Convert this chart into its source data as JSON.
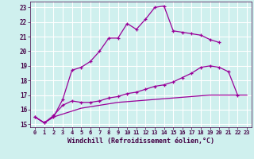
{
  "bg_color": "#cff0ee",
  "grid_color": "#ffffff",
  "line_color": "#990099",
  "xlabel": "Windchill (Refroidissement éolien,°C)",
  "xlim": [
    -0.5,
    23.5
  ],
  "ylim": [
    14.8,
    23.4
  ],
  "xticks": [
    0,
    1,
    2,
    3,
    4,
    5,
    6,
    7,
    8,
    9,
    10,
    11,
    12,
    13,
    14,
    15,
    16,
    17,
    18,
    19,
    20,
    21,
    22,
    23
  ],
  "yticks": [
    15,
    16,
    17,
    18,
    19,
    20,
    21,
    22,
    23
  ],
  "series1_x": [
    0,
    1,
    2,
    3,
    4,
    5,
    6,
    7,
    8,
    9,
    10,
    11,
    12,
    13,
    14,
    15,
    16,
    17,
    18,
    19,
    20
  ],
  "series1_y": [
    15.5,
    15.1,
    15.5,
    16.7,
    18.7,
    18.9,
    19.3,
    20.0,
    20.9,
    20.9,
    21.9,
    21.5,
    22.2,
    23.0,
    23.1,
    21.4,
    21.3,
    21.2,
    21.1,
    20.8,
    20.6
  ],
  "series2_x": [
    0,
    1,
    2,
    3,
    4,
    5,
    6,
    7,
    8,
    9,
    10,
    11,
    12,
    13,
    14,
    15,
    16,
    17,
    18,
    19,
    20,
    21,
    22
  ],
  "series2_y": [
    15.5,
    15.1,
    15.6,
    16.3,
    16.6,
    16.5,
    16.5,
    16.6,
    16.8,
    16.9,
    17.1,
    17.2,
    17.4,
    17.6,
    17.7,
    17.9,
    18.2,
    18.5,
    18.9,
    19.0,
    18.9,
    18.6,
    17.0
  ],
  "series3_x": [
    0,
    1,
    2,
    3,
    4,
    5,
    6,
    7,
    8,
    9,
    10,
    11,
    12,
    13,
    14,
    15,
    16,
    17,
    18,
    19,
    20,
    21,
    22,
    23
  ],
  "series3_y": [
    15.5,
    15.1,
    15.5,
    15.7,
    15.9,
    16.1,
    16.2,
    16.3,
    16.4,
    16.5,
    16.55,
    16.6,
    16.65,
    16.7,
    16.75,
    16.8,
    16.85,
    16.9,
    16.95,
    17.0,
    17.0,
    17.0,
    17.0,
    17.0
  ]
}
